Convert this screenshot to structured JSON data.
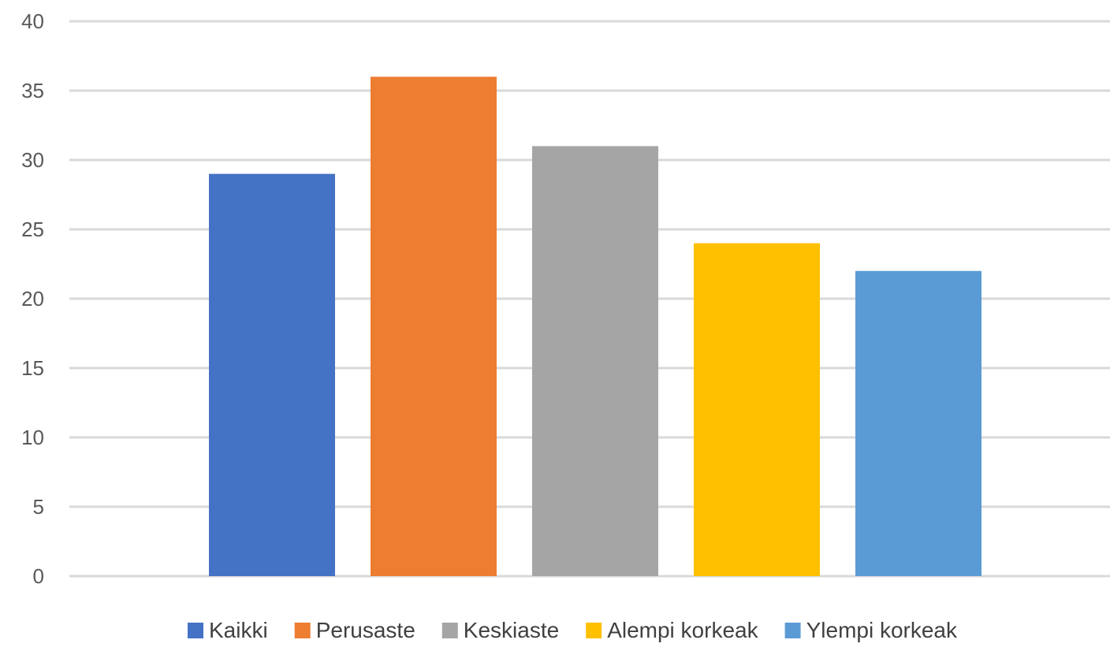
{
  "chart_data": {
    "type": "bar",
    "title": "",
    "xlabel": "",
    "ylabel": "",
    "ylim": [
      0,
      40
    ],
    "yticks": [
      0,
      5,
      10,
      15,
      20,
      25,
      30,
      35,
      40
    ],
    "grid": true,
    "legend_position": "bottom",
    "series": [
      {
        "name": "Kaikki",
        "value": 29,
        "color": "#4472c4"
      },
      {
        "name": "Perusaste",
        "value": 36,
        "color": "#ed7d31"
      },
      {
        "name": "Keskiaste",
        "value": 31,
        "color": "#a5a5a5"
      },
      {
        "name": "Alempi korkeak",
        "value": 24,
        "color": "#ffc000"
      },
      {
        "name": "Ylempi korkeak",
        "value": 22,
        "color": "#5b9bd5"
      }
    ]
  }
}
